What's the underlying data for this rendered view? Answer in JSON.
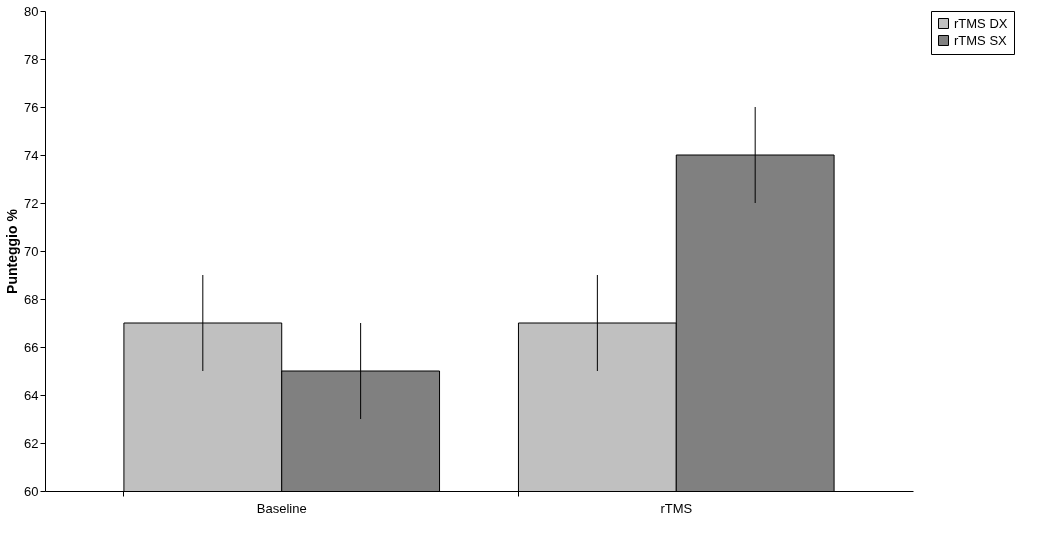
{
  "chart_data": {
    "type": "bar",
    "ylabel": "Punteggio %",
    "categories": [
      "Baseline",
      "rTMS"
    ],
    "series": [
      {
        "name": "rTMS DX",
        "color": "#c0c0c0",
        "values": [
          67,
          67
        ],
        "errors": [
          2,
          2
        ]
      },
      {
        "name": "rTMS SX",
        "color": "#808080",
        "values": [
          65,
          74
        ],
        "errors": [
          2,
          2
        ]
      }
    ],
    "ylim": [
      60,
      80
    ],
    "yticks": [
      60,
      62,
      64,
      66,
      68,
      70,
      72,
      74,
      76,
      78,
      80
    ],
    "grid": false,
    "legend": "right"
  }
}
